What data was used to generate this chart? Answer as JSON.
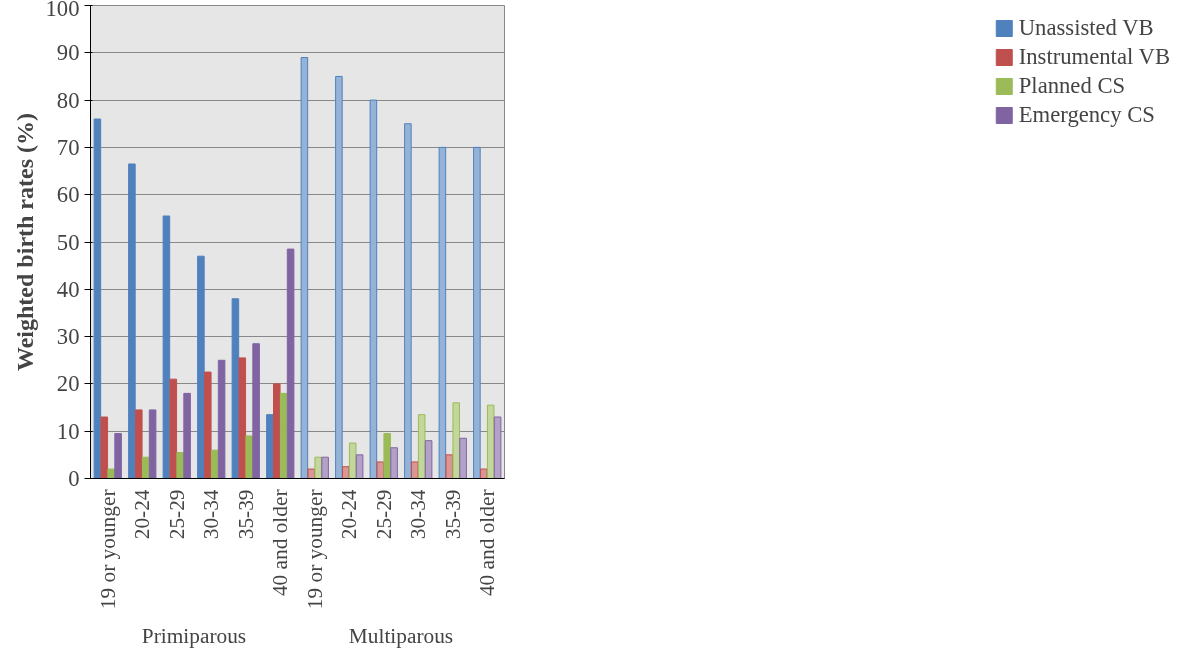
{
  "chart_data": {
    "type": "bar",
    "ylabel": "Weighted birth rates (%)",
    "categories": [
      "19 or younger",
      "20-24",
      "25-29",
      "30-34",
      "35-39",
      "40 and older",
      "19 or younger",
      "20-24",
      "25-29",
      "30-34",
      "35-39",
      "40 and older"
    ],
    "series": [
      {
        "name": "Unassisted VB",
        "color": "#4f81bd",
        "colors": [
          "#4f81bd",
          "#4f81bd",
          "#4f81bd",
          "#4f81bd",
          "#4f81bd",
          "#4f81bd",
          "#95b3d7",
          "#95b3d7",
          "#95b3d7",
          "#95b3d7",
          "#95b3d7",
          "#95b3d7"
        ],
        "values": [
          76,
          66.5,
          55.5,
          47,
          38,
          13.5,
          89,
          85,
          80,
          75,
          70,
          70
        ]
      },
      {
        "name": "Instrumental VB",
        "color": "#c0504d",
        "colors": [
          "#c0504d",
          "#c0504d",
          "#c0504d",
          "#c0504d",
          "#c0504d",
          "#c0504d",
          "#d99694",
          "#d99694",
          "#d99694",
          "#d99694",
          "#d99694",
          "#d99694"
        ],
        "values": [
          13,
          14.5,
          21,
          22.5,
          25.5,
          20,
          2,
          2.5,
          3.5,
          3.5,
          5,
          2
        ]
      },
      {
        "name": "Planned CS",
        "color": "#9bbb59",
        "colors": [
          "#9bbb59",
          "#9bbb59",
          "#9bbb59",
          "#9bbb59",
          "#9bbb59",
          "#9bbb59",
          "#c3d69b",
          "#c3d69b",
          "#9bbb59",
          "#c3d69b",
          "#c3d69b",
          "#c3d69b"
        ],
        "values": [
          2,
          4.5,
          5.5,
          6,
          9,
          18,
          4.5,
          7.5,
          9.5,
          13.5,
          16,
          15.5
        ]
      },
      {
        "name": "Emergency CS",
        "color": "#8064a2",
        "colors": [
          "#8064a2",
          "#8064a2",
          "#8064a2",
          "#8064a2",
          "#8064a2",
          "#8064a2",
          "#b3a2c7",
          "#b3a2c7",
          "#b3a2c7",
          "#b3a2c7",
          "#b3a2c7",
          "#b3a2c7"
        ],
        "values": [
          9.5,
          14.5,
          18,
          25,
          28.5,
          48.5,
          4.5,
          5,
          6.5,
          8,
          8.5,
          13
        ]
      }
    ],
    "annotations": [
      "Primiparous",
      "Multiparous"
    ],
    "ylim": [
      0,
      100
    ],
    "yticks": [
      0,
      10,
      20,
      30,
      40,
      50,
      60,
      70,
      80,
      90,
      100
    ],
    "grid": "y",
    "legend": "right"
  }
}
